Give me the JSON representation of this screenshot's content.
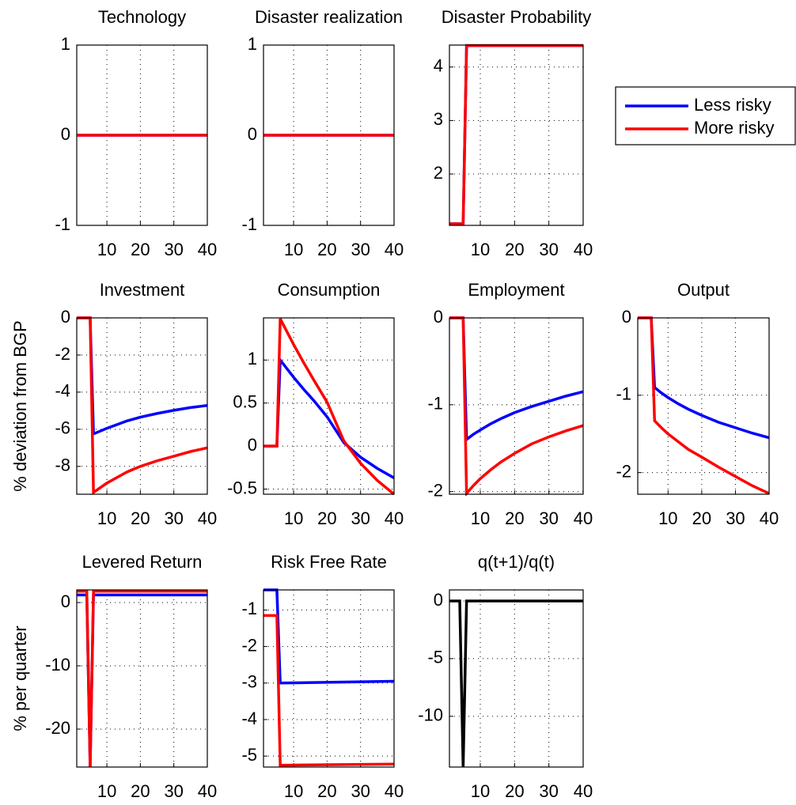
{
  "chart_data": [
    {
      "type": "line",
      "title": "Technology",
      "x": [
        1,
        40
      ],
      "xlim": [
        1,
        40
      ],
      "xticks": [
        10,
        20,
        30,
        40
      ],
      "ylim": [
        -1,
        1
      ],
      "yticks": [
        -1,
        0,
        1
      ],
      "grid": true,
      "series": [
        {
          "name": "Less risky",
          "color": "#0000ff",
          "values": [
            0,
            0
          ]
        },
        {
          "name": "More risky",
          "color": "#ff0000",
          "values": [
            0,
            0
          ]
        }
      ]
    },
    {
      "type": "line",
      "title": "Disaster realization",
      "x": [
        1,
        40
      ],
      "xlim": [
        1,
        40
      ],
      "xticks": [
        10,
        20,
        30,
        40
      ],
      "ylim": [
        -1,
        1
      ],
      "yticks": [
        -1,
        0,
        1
      ],
      "grid": true,
      "series": [
        {
          "name": "Less risky",
          "color": "#0000ff",
          "values": [
            0,
            0
          ]
        },
        {
          "name": "More risky",
          "color": "#ff0000",
          "values": [
            0,
            0
          ]
        }
      ]
    },
    {
      "type": "line",
      "title": "Disaster Probability",
      "x": [
        1,
        5,
        6,
        40
      ],
      "xlim": [
        1,
        40
      ],
      "xticks": [
        10,
        20,
        30,
        40
      ],
      "ylim": [
        1.04,
        4.41
      ],
      "yticks": [
        2,
        3,
        4
      ],
      "grid": true,
      "legend": "outside right",
      "series": [
        {
          "name": "Less risky",
          "color": "#0000ff",
          "values": [
            1.07,
            1.07,
            4.4,
            4.4
          ]
        },
        {
          "name": "More risky",
          "color": "#ff0000",
          "values": [
            1.07,
            1.07,
            4.4,
            4.4
          ]
        }
      ]
    },
    {
      "type": "line",
      "title": "Investment",
      "ylabel": "% deviation from BGP",
      "x": [
        1,
        5,
        6,
        8,
        10,
        13,
        16,
        20,
        25,
        30,
        35,
        40
      ],
      "xlim": [
        1,
        40
      ],
      "xticks": [
        10,
        20,
        30,
        40
      ],
      "ylim": [
        -9.5,
        0
      ],
      "yticks": [
        -8,
        -6,
        -4,
        -2,
        0
      ],
      "grid": true,
      "series": [
        {
          "name": "Less risky",
          "color": "#0000ff",
          "values": [
            0,
            0,
            -6.25,
            -6.1,
            -5.95,
            -5.75,
            -5.55,
            -5.35,
            -5.15,
            -4.98,
            -4.83,
            -4.72
          ]
        },
        {
          "name": "More risky",
          "color": "#ff0000",
          "values": [
            0,
            0,
            -9.4,
            -9.15,
            -8.9,
            -8.6,
            -8.3,
            -8.0,
            -7.7,
            -7.45,
            -7.2,
            -7.0
          ]
        }
      ]
    },
    {
      "type": "line",
      "title": "Consumption",
      "x": [
        1,
        5,
        6,
        8,
        10,
        13,
        16,
        20,
        25,
        30,
        35,
        40
      ],
      "xlim": [
        1,
        40
      ],
      "xticks": [
        10,
        20,
        30,
        40
      ],
      "ylim": [
        -0.56,
        1.49
      ],
      "yticks": [
        -0.5,
        0,
        0.5,
        1
      ],
      "grid": true,
      "series": [
        {
          "name": "Less risky",
          "color": "#0000ff",
          "values": [
            0,
            0,
            1.0,
            0.9,
            0.8,
            0.66,
            0.53,
            0.34,
            0.04,
            -0.13,
            -0.26,
            -0.37
          ]
        },
        {
          "name": "More risky",
          "color": "#ff0000",
          "values": [
            0,
            0,
            1.48,
            1.33,
            1.18,
            0.97,
            0.77,
            0.51,
            0.06,
            -0.2,
            -0.4,
            -0.56
          ]
        }
      ]
    },
    {
      "type": "line",
      "title": "Employment",
      "x": [
        1,
        5,
        6,
        8,
        10,
        13,
        16,
        20,
        25,
        30,
        35,
        40
      ],
      "xlim": [
        1,
        40
      ],
      "xticks": [
        10,
        20,
        30,
        40
      ],
      "ylim": [
        -2.03,
        0
      ],
      "yticks": [
        -2,
        -1,
        0
      ],
      "grid": true,
      "series": [
        {
          "name": "Less risky",
          "color": "#0000ff",
          "values": [
            0,
            0,
            -1.4,
            -1.34,
            -1.29,
            -1.22,
            -1.16,
            -1.09,
            -1.02,
            -0.96,
            -0.9,
            -0.85
          ]
        },
        {
          "name": "More risky",
          "color": "#ff0000",
          "values": [
            0,
            0,
            -2.02,
            -1.93,
            -1.85,
            -1.75,
            -1.66,
            -1.56,
            -1.45,
            -1.37,
            -1.3,
            -1.24
          ]
        }
      ]
    },
    {
      "type": "line",
      "title": "Output",
      "x": [
        1,
        5,
        6,
        8,
        10,
        13,
        16,
        20,
        25,
        30,
        35,
        40
      ],
      "xlim": [
        1,
        40
      ],
      "xticks": [
        10,
        20,
        30,
        40
      ],
      "ylim": [
        -2.28,
        0
      ],
      "yticks": [
        -2,
        -1,
        0
      ],
      "grid": true,
      "series": [
        {
          "name": "Less risky",
          "color": "#0000ff",
          "values": [
            0,
            0,
            -0.9,
            -0.97,
            -1.03,
            -1.11,
            -1.18,
            -1.26,
            -1.35,
            -1.42,
            -1.49,
            -1.55
          ]
        },
        {
          "name": "More risky",
          "color": "#ff0000",
          "values": [
            0,
            0,
            -1.33,
            -1.42,
            -1.5,
            -1.6,
            -1.7,
            -1.8,
            -1.93,
            -2.05,
            -2.17,
            -2.27
          ]
        }
      ]
    },
    {
      "type": "line",
      "title": "Levered Return",
      "ylabel": "% per quarter",
      "x": [
        1,
        4,
        5,
        6,
        40
      ],
      "xlim": [
        1,
        40
      ],
      "xticks": [
        10,
        20,
        30,
        40
      ],
      "ylim": [
        -26,
        2
      ],
      "yticks": [
        -20,
        -10,
        0
      ],
      "grid": true,
      "series": [
        {
          "name": "Less risky",
          "color": "#0000ff",
          "values": [
            1.2,
            1.2,
            -26,
            1.2,
            1.2
          ]
        },
        {
          "name": "More risky",
          "color": "#ff0000",
          "values": [
            1.8,
            1.8,
            -26,
            1.8,
            1.8
          ]
        }
      ]
    },
    {
      "type": "line",
      "title": "Risk Free Rate",
      "x": [
        1,
        5,
        6,
        40
      ],
      "xlim": [
        1,
        40
      ],
      "xticks": [
        10,
        20,
        30,
        40
      ],
      "ylim": [
        -5.3,
        -0.45
      ],
      "yticks": [
        -5,
        -4,
        -3,
        -2,
        -1
      ],
      "grid": true,
      "series": [
        {
          "name": "Less risky",
          "color": "#0000ff",
          "values": [
            -0.45,
            -0.45,
            -3.0,
            -2.95
          ]
        },
        {
          "name": "More risky",
          "color": "#ff0000",
          "values": [
            -1.15,
            -1.15,
            -5.25,
            -5.22
          ]
        }
      ]
    },
    {
      "type": "line",
      "title": "q(t+1)/q(t)",
      "x": [
        1,
        4,
        5,
        6,
        40
      ],
      "xlim": [
        1,
        40
      ],
      "xticks": [
        10,
        20,
        30,
        40
      ],
      "ylim": [
        -14.4,
        0.96
      ],
      "yticks": [
        -10,
        -5,
        0
      ],
      "grid": true,
      "series": [
        {
          "color": "#000000",
          "values": [
            0,
            0,
            -14.4,
            0,
            0
          ]
        }
      ]
    }
  ]
}
